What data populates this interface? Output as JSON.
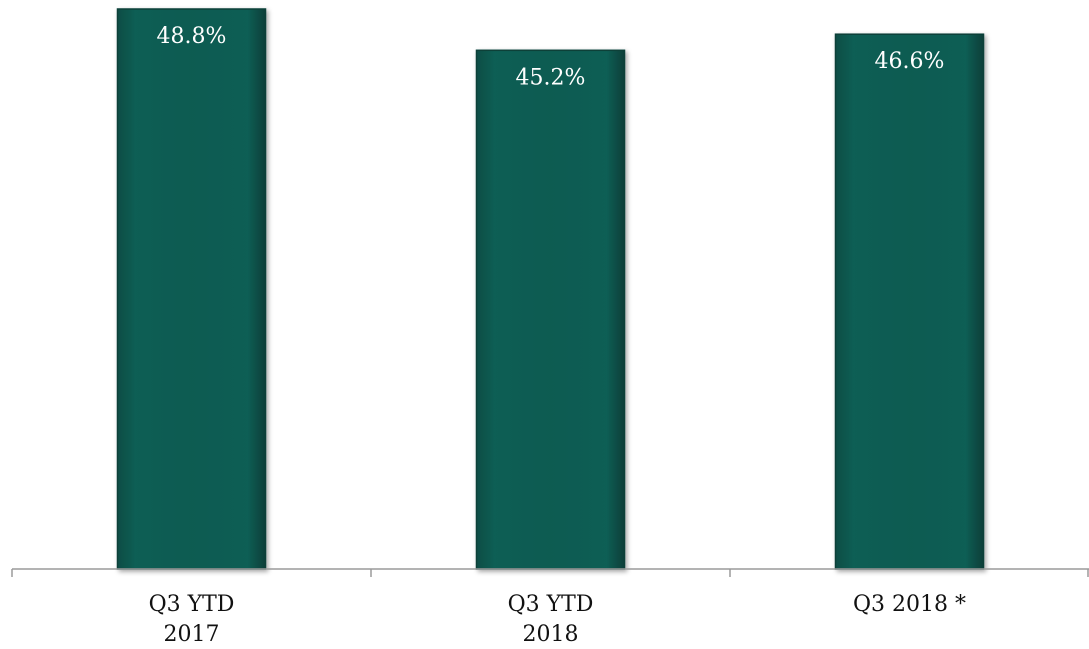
{
  "chart_data": {
    "type": "bar",
    "categories": [
      [
        "Q3 YTD",
        "2017"
      ],
      [
        "Q3 YTD",
        "2018"
      ],
      [
        "Q3 2018 *"
      ]
    ],
    "values": [
      48.8,
      45.2,
      46.6
    ],
    "data_labels": [
      "48.8%",
      "45.2%",
      "46.6%"
    ],
    "ylim": [
      0,
      50
    ],
    "grid": false,
    "legend": "none",
    "title": "",
    "xlabel": "",
    "ylabel": "",
    "colors": {
      "bar": "#0b5a50",
      "bar_edge": "#073f38",
      "axis": "#9a9a9a"
    }
  }
}
